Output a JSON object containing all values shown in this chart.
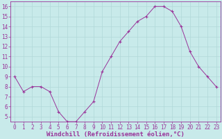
{
  "x": [
    0,
    1,
    2,
    3,
    4,
    5,
    6,
    7,
    8,
    9,
    10,
    11,
    12,
    13,
    14,
    15,
    16,
    17,
    18,
    19,
    20,
    21,
    22,
    23
  ],
  "y": [
    9,
    7.5,
    8,
    8,
    7.5,
    5.5,
    4.5,
    4.5,
    5.5,
    6.5,
    9.5,
    11,
    12.5,
    13.5,
    14.5,
    15,
    16,
    16,
    15.5,
    14,
    11.5,
    10,
    9,
    8
  ],
  "line_color": "#993399",
  "marker_color": "#993399",
  "bg_color": "#c8eaea",
  "grid_color": "#b0d8d8",
  "xlabel": "Windchill (Refroidissement éolien,°C)",
  "ylim": [
    4.5,
    16.5
  ],
  "yticks": [
    5,
    6,
    7,
    8,
    9,
    10,
    11,
    12,
    13,
    14,
    15,
    16
  ],
  "xticks": [
    0,
    1,
    2,
    3,
    4,
    5,
    6,
    7,
    8,
    9,
    10,
    11,
    12,
    13,
    14,
    15,
    16,
    17,
    18,
    19,
    20,
    21,
    22,
    23
  ],
  "tick_fontsize": 5.5,
  "xlabel_fontsize": 6.5,
  "text_color": "#993399"
}
